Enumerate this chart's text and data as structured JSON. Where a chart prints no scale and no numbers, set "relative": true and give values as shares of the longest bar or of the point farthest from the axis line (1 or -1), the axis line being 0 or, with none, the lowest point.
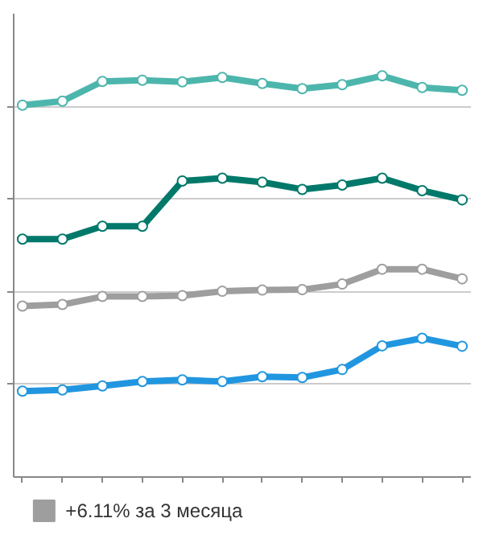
{
  "chart_data": {
    "type": "line",
    "relative": true,
    "categories": [
      null,
      null,
      null,
      null,
      null,
      null,
      null,
      null,
      null,
      null,
      null,
      null
    ],
    "series": [
      {
        "color": "#4db6ac",
        "values": [
          0.927,
          0.937,
          0.986,
          0.989,
          0.985,
          0.996,
          0.981,
          0.968,
          0.978,
          1,
          0.971,
          0.964
        ]
      },
      {
        "color": "#00796b",
        "values": [
          0.593,
          0.593,
          0.625,
          0.625,
          0.738,
          0.745,
          0.735,
          0.717,
          0.728,
          0.745,
          0.714,
          0.691
        ]
      },
      {
        "name": "+6.11% за 3 месяца",
        "color": "#9e9e9e",
        "values": [
          0.426,
          0.43,
          0.45,
          0.45,
          0.452,
          0.463,
          0.466,
          0.467,
          0.481,
          0.518,
          0.518,
          0.494
        ]
      },
      {
        "color": "#2196e0",
        "values": [
          0.214,
          0.217,
          0.227,
          0.238,
          0.242,
          0.238,
          0.25,
          0.248,
          0.268,
          0.327,
          0.346,
          0.326
        ]
      }
    ],
    "grid": "y",
    "legend": "bottom",
    "marker": "circle",
    "line_style": "solid"
  }
}
